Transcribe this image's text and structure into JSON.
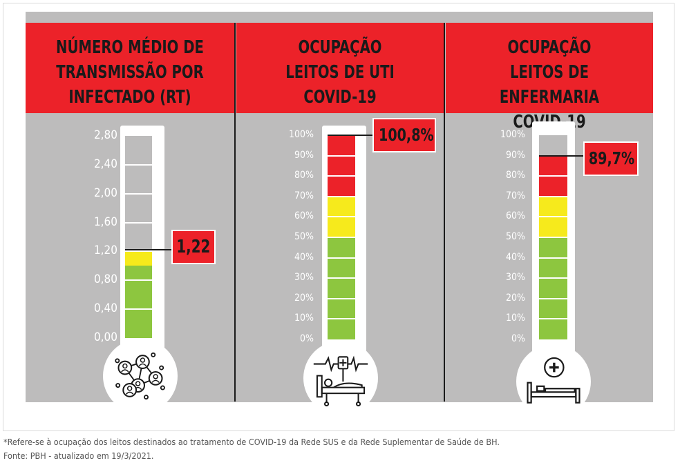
{
  "panels": [
    {
      "title": "NÚMERO MÉDIO DE\nTRANSMISSÃO POR\nINFECTADO (RT)",
      "ticks": [
        "2,80",
        "2,40",
        "2,00",
        "1,60",
        "1,20",
        "0,80",
        "0,40",
        "0,00"
      ],
      "value_label": "1,22",
      "icon": "network-people-icon"
    },
    {
      "title": "OCUPAÇÃO\nLEITOS DE UTI\nCOVID-19",
      "ticks": [
        "100%",
        "90%",
        "80%",
        "70%",
        "60%",
        "50%",
        "40%",
        "30%",
        "20%",
        "10%",
        "0%"
      ],
      "value_label": "100,8%",
      "icon": "icu-bed-monitor-icon"
    },
    {
      "title": "OCUPAÇÃO\nLEITOS DE ENFERMARIA\nCOVID-19",
      "ticks": [
        "100%",
        "90%",
        "80%",
        "70%",
        "60%",
        "50%",
        "40%",
        "30%",
        "20%",
        "10%",
        "0%"
      ],
      "value_label": "89,7%",
      "icon": "hospital-bed-cross-icon"
    }
  ],
  "chart_data": [
    {
      "type": "bar",
      "title": "NÚMERO MÉDIO DE TRANSMISSÃO POR INFECTADO (RT)",
      "ylim": [
        0,
        2.8
      ],
      "value": 1.22,
      "zones": [
        {
          "color": "#8dc63f",
          "from": 0,
          "to": 1.0
        },
        {
          "color": "#f6ea1c",
          "from": 1.0,
          "to": 1.2
        },
        {
          "color": "#ec2229",
          "from": 1.2,
          "to": 2.8
        }
      ]
    },
    {
      "type": "bar",
      "title": "OCUPAÇÃO LEITOS DE UTI COVID-19",
      "ylim": [
        0,
        100
      ],
      "value": 100.8,
      "zones": [
        {
          "color": "#8dc63f",
          "from": 0,
          "to": 50
        },
        {
          "color": "#f6ea1c",
          "from": 50,
          "to": 70
        },
        {
          "color": "#ec2229",
          "from": 70,
          "to": 100
        }
      ]
    },
    {
      "type": "bar",
      "title": "OCUPAÇÃO LEITOS DE ENFERMARIA COVID-19",
      "ylim": [
        0,
        100
      ],
      "value": 89.7,
      "zones": [
        {
          "color": "#8dc63f",
          "from": 0,
          "to": 50
        },
        {
          "color": "#f6ea1c",
          "from": 50,
          "to": 70
        },
        {
          "color": "#ec2229",
          "from": 70,
          "to": 100
        }
      ]
    }
  ],
  "footnote": {
    "line1": "*Refere-se à ocupação dos leitos destinados ao tratamento de COVID-19 da Rede SUS e da Rede Suplementar de Saúde de BH.",
    "line2": "Fonte: PBH - atualizado em 19/3/2021."
  },
  "colors": {
    "header": "#ec2229",
    "panel": "#bdbcbc",
    "empty": "#bdbcbc"
  }
}
